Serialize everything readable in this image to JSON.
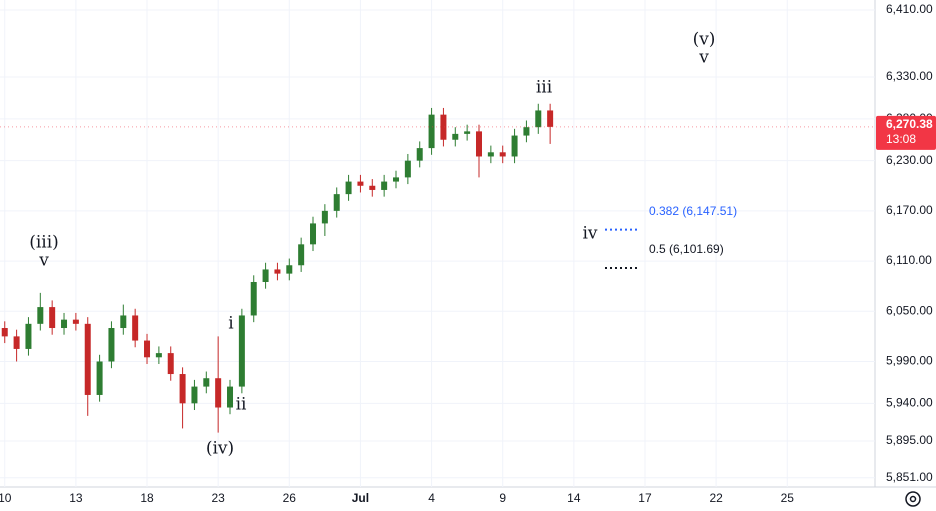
{
  "chart_data": {
    "type": "candlestick",
    "x": [
      0,
      0.5,
      1,
      1.5,
      2,
      2.5,
      3,
      3.5,
      4,
      4.5,
      5,
      5.5,
      6,
      6.5,
      7,
      7.5,
      8,
      8.5,
      9,
      9.5,
      10,
      10.5,
      11,
      11.5,
      12,
      12.5,
      13,
      13.5,
      14,
      14.5,
      15,
      15.5,
      16,
      16.5,
      17,
      17.5,
      18,
      18.5,
      19,
      19.5,
      20,
      20.5,
      21,
      21.5,
      22,
      22.5,
      23
    ],
    "open": [
      6030,
      6020,
      6005,
      6035,
      6055,
      6030,
      6040,
      6035,
      5950,
      5990,
      6030,
      6045,
      6015,
      5995,
      6000,
      5975,
      5940,
      5960,
      5970,
      5935,
      5960,
      6045,
      6085,
      6100,
      6095,
      6105,
      6130,
      6155,
      6170,
      6190,
      6205,
      6200,
      6195,
      6205,
      6210,
      6230,
      6245,
      6285,
      6255,
      6262,
      6265,
      6235,
      6240,
      6235,
      6260,
      6270,
      6290
    ],
    "high": [
      6038,
      6028,
      6043,
      6072,
      6063,
      6048,
      6048,
      6043,
      5998,
      6038,
      6058,
      6053,
      6023,
      6008,
      6008,
      5983,
      5968,
      5978,
      6020,
      5968,
      6053,
      6093,
      6108,
      6108,
      6113,
      6138,
      6163,
      6178,
      6198,
      6213,
      6213,
      6208,
      6213,
      6218,
      6238,
      6253,
      6293,
      6293,
      6270,
      6273,
      6273,
      6248,
      6248,
      6268,
      6278,
      6298,
      6298
    ],
    "low": [
      6012,
      5990,
      5997,
      6027,
      6022,
      6022,
      6027,
      5925,
      5942,
      5982,
      6022,
      6007,
      5987,
      5987,
      5967,
      5910,
      5932,
      5952,
      5905,
      5927,
      5952,
      6037,
      6077,
      6087,
      6087,
      6097,
      6122,
      6140,
      6162,
      6182,
      6192,
      6187,
      6187,
      6197,
      6202,
      6222,
      6237,
      6247,
      6247,
      6254,
      6210,
      6227,
      6227,
      6227,
      6252,
      6262,
      6250
    ],
    "close": [
      6020,
      6005,
      6035,
      6055,
      6030,
      6040,
      6035,
      5950,
      5990,
      6030,
      6045,
      6015,
      5995,
      6000,
      5975,
      5940,
      5960,
      5970,
      5935,
      5960,
      6045,
      6085,
      6100,
      6095,
      6105,
      6130,
      6155,
      6170,
      6190,
      6205,
      6200,
      6195,
      6205,
      6210,
      6230,
      6245,
      6285,
      6255,
      6262,
      6265,
      6235,
      6240,
      6235,
      6260,
      6270,
      6290,
      6270.38
    ],
    "up_color": "#2e7d32",
    "down_color": "#c62828",
    "xlim": [
      -0.2,
      36.7
    ],
    "xticks": [
      {
        "value": 0,
        "label": "10"
      },
      {
        "value": 3,
        "label": "13"
      },
      {
        "value": 6,
        "label": "18"
      },
      {
        "value": 9,
        "label": "23"
      },
      {
        "value": 12,
        "label": "26"
      },
      {
        "value": 15,
        "label": "Jul"
      },
      {
        "value": 18,
        "label": "4"
      },
      {
        "value": 21,
        "label": "9"
      },
      {
        "value": 24,
        "label": "14"
      },
      {
        "value": 27,
        "label": "17"
      },
      {
        "value": 30,
        "label": "22"
      },
      {
        "value": 33,
        "label": "25"
      }
    ],
    "ylim": [
      5840,
      6422
    ],
    "yticks": [
      {
        "value": 5851,
        "label": "5,851.00"
      },
      {
        "value": 5895,
        "label": "5,895.00"
      },
      {
        "value": 5940,
        "label": "5,940.00"
      },
      {
        "value": 5990,
        "label": "5,990.00"
      },
      {
        "value": 6050,
        "label": "6,050.00"
      },
      {
        "value": 6110,
        "label": "6,110.00"
      },
      {
        "value": 6170,
        "label": "6,170.00"
      },
      {
        "value": 6230,
        "label": "6,230.00"
      },
      {
        "value": 6280,
        "label": "6,280.00"
      },
      {
        "value": 6330,
        "label": "6,330.00"
      },
      {
        "value": 6410,
        "label": "6,410.00"
      }
    ],
    "grid": true,
    "last_price": {
      "value": 6270.38,
      "label": "6,270.38",
      "countdown": "13:08",
      "color": "#f23645"
    },
    "fib_levels": [
      {
        "value": 6147.51,
        "label": "0.382 (6,147.51)",
        "color": "#2962ff"
      },
      {
        "value": 6101.69,
        "label": "0.5 (6,101.69)",
        "color": "#131722"
      }
    ],
    "wave_labels": [
      "(iii)",
      "v",
      "(iv)",
      "i",
      "ii",
      "iii",
      "iv",
      "(v)",
      "v"
    ]
  }
}
